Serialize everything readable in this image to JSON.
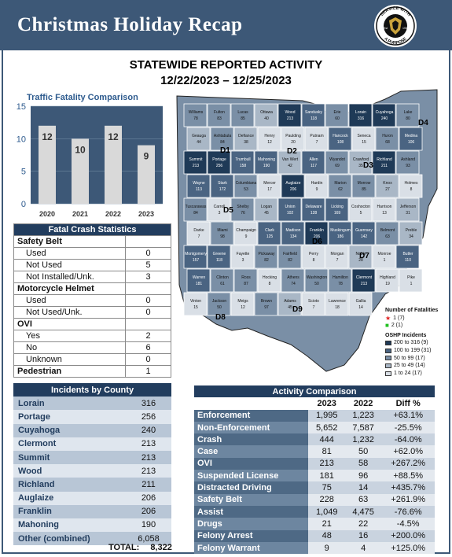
{
  "header": {
    "title": "Christmas Holiday Recap",
    "seal_text_top": "SERVICE WITH",
    "seal_text_bottom": "A PURPOSE",
    "seal_est": "Est",
    "seal_year": "1933"
  },
  "report": {
    "title": "STATEWIDE REPORTED ACTIVITY",
    "dates": "12/22/2023 – 12/25/2023"
  },
  "chart_data": {
    "type": "bar",
    "title": "Traffic Fatality Comparison",
    "categories": [
      "2020",
      "2021",
      "2022",
      "2023"
    ],
    "values": [
      12,
      10,
      12,
      9
    ],
    "ylim": [
      0,
      15
    ],
    "yticks": [
      0,
      5,
      10,
      15
    ],
    "bar_color": "#d9d9d9",
    "background_color": "#3d5877"
  },
  "fatal_crash": {
    "title": "Fatal Crash Statistics",
    "sections": [
      {
        "label": "Safety Belt",
        "rows": [
          {
            "label": "Used",
            "value": "0"
          },
          {
            "label": "Not Used",
            "value": "5"
          },
          {
            "label": "Not Installed/Unk.",
            "value": "3"
          }
        ]
      },
      {
        "label": "Motorcycle Helmet",
        "rows": [
          {
            "label": "Used",
            "value": "0"
          },
          {
            "label": "Not Used/Unk.",
            "value": "0"
          }
        ]
      },
      {
        "label": "OVI",
        "rows": [
          {
            "label": "Yes",
            "value": "2"
          },
          {
            "label": "No",
            "value": "6"
          },
          {
            "label": "Unknown",
            "value": "0"
          }
        ]
      }
    ],
    "pedestrian": {
      "label": "Pedestrian",
      "value": "1"
    }
  },
  "incidents": {
    "title": "Incidents by County",
    "rows": [
      {
        "county": "Lorain",
        "value": "316"
      },
      {
        "county": "Portage",
        "value": "256"
      },
      {
        "county": "Cuyahoga",
        "value": "240"
      },
      {
        "county": "Clermont",
        "value": "213"
      },
      {
        "county": "Summit",
        "value": "213"
      },
      {
        "county": "Wood",
        "value": "213"
      },
      {
        "county": "Richland",
        "value": "211"
      },
      {
        "county": "Auglaize",
        "value": "206"
      },
      {
        "county": "Franklin",
        "value": "206"
      },
      {
        "county": "Mahoning",
        "value": "190"
      },
      {
        "county": "Other (combined)",
        "value": "6,058"
      }
    ],
    "total_label": "TOTAL:",
    "total_value": "8,322"
  },
  "activity": {
    "title": "Activity Comparison",
    "columns": [
      "2023",
      "2022",
      "Diff %"
    ],
    "rows": [
      {
        "metric": "Enforcement",
        "y2023": "1,995",
        "y2022": "1,223",
        "diff": "+63.1%"
      },
      {
        "metric": "Non-Enforcement",
        "y2023": "5,652",
        "y2022": "7,587",
        "diff": "-25.5%"
      },
      {
        "metric": "Crash",
        "y2023": "444",
        "y2022": "1,232",
        "diff": "-64.0%"
      },
      {
        "metric": "Case",
        "y2023": "81",
        "y2022": "50",
        "diff": "+62.0%"
      },
      {
        "metric": "OVI",
        "y2023": "213",
        "y2022": "58",
        "diff": "+267.2%"
      },
      {
        "metric": "Suspended License",
        "y2023": "181",
        "y2022": "96",
        "diff": "+88.5%"
      },
      {
        "metric": "Distracted Driving",
        "y2023": "75",
        "y2022": "14",
        "diff": "+435.7%"
      },
      {
        "metric": "Safety Belt",
        "y2023": "228",
        "y2022": "63",
        "diff": "+261.9%"
      },
      {
        "metric": "Assist",
        "y2023": "1,049",
        "y2022": "4,475",
        "diff": "-76.6%"
      },
      {
        "metric": "Drugs",
        "y2023": "21",
        "y2022": "22",
        "diff": "-4.5%"
      },
      {
        "metric": "Felony Arrest",
        "y2023": "48",
        "y2022": "16",
        "diff": "+200.0%"
      },
      {
        "metric": "Felony Warrant",
        "y2023": "9",
        "y2022": "4",
        "diff": "+125.0%"
      }
    ]
  },
  "map": {
    "districts": [
      "D1",
      "D2",
      "D3",
      "D4",
      "D5",
      "D6",
      "D7",
      "D8",
      "D9"
    ],
    "legend": {
      "fatalities_title": "Number of Fatalities",
      "fatalities": [
        {
          "symbol": "★",
          "label": "1  (7)",
          "color": "#e02020"
        },
        {
          "symbol": "■",
          "label": "2  (1)",
          "color": "#22c022"
        }
      ],
      "incidents_title": "OSHP Incidents",
      "incidents": [
        {
          "label": "200 to 316  (9)",
          "color": "#1f3a57"
        },
        {
          "label": "100 to 199  (31)",
          "color": "#4a6482"
        },
        {
          "label": "50 to 99  (17)",
          "color": "#7a8fa6"
        },
        {
          "label": "25 to 49  (14)",
          "color": "#a9b7c6"
        },
        {
          "label": "1 to 24  (17)",
          "color": "#d9dfe6"
        }
      ]
    },
    "county_labels": [
      {
        "name": "Williams",
        "v": "78"
      },
      {
        "name": "Fulton",
        "v": "83"
      },
      {
        "name": "Lucas",
        "v": "85"
      },
      {
        "name": "Ottawa",
        "v": "40"
      },
      {
        "name": "Wood",
        "v": "213"
      },
      {
        "name": "Sandusky",
        "v": "118"
      },
      {
        "name": "Erie",
        "v": "60"
      },
      {
        "name": "Lorain",
        "v": "316"
      },
      {
        "name": "Cuyahoga",
        "v": "240"
      },
      {
        "name": "Lake",
        "v": "80"
      },
      {
        "name": "Geauga",
        "v": "44"
      },
      {
        "name": "Ashtabula",
        "v": "84"
      },
      {
        "name": "Defiance",
        "v": "38"
      },
      {
        "name": "Henry",
        "v": "12"
      },
      {
        "name": "Paulding",
        "v": "20"
      },
      {
        "name": "Putnam",
        "v": "7"
      },
      {
        "name": "Hancock",
        "v": "108"
      },
      {
        "name": "Seneca",
        "v": "15"
      },
      {
        "name": "Huron",
        "v": "68"
      },
      {
        "name": "Medina",
        "v": "106"
      },
      {
        "name": "Summit",
        "v": "213"
      },
      {
        "name": "Portage",
        "v": "256"
      },
      {
        "name": "Trumbull",
        "v": "158"
      },
      {
        "name": "Mahoning",
        "v": "190"
      },
      {
        "name": "Van Wert",
        "v": "42"
      },
      {
        "name": "Allen",
        "v": "117"
      },
      {
        "name": "Wyandot",
        "v": "69"
      },
      {
        "name": "Crawford",
        "v": "35"
      },
      {
        "name": "Richland",
        "v": "211"
      },
      {
        "name": "Ashland",
        "v": "93"
      },
      {
        "name": "Wayne",
        "v": "113"
      },
      {
        "name": "Stark",
        "v": "172"
      },
      {
        "name": "Columbiana",
        "v": "53"
      },
      {
        "name": "Mercer",
        "v": "17"
      },
      {
        "name": "Auglaize",
        "v": "206"
      },
      {
        "name": "Hardin",
        "v": "9"
      },
      {
        "name": "Marion",
        "v": "62"
      },
      {
        "name": "Morrow",
        "v": "85"
      },
      {
        "name": "Knox",
        "v": "27"
      },
      {
        "name": "Holmes",
        "v": "8"
      },
      {
        "name": "Tuscarawas",
        "v": "84"
      },
      {
        "name": "Carroll",
        "v": "3"
      },
      {
        "name": "Shelby",
        "v": "76"
      },
      {
        "name": "Logan",
        "v": "45"
      },
      {
        "name": "Union",
        "v": "102"
      },
      {
        "name": "Delaware",
        "v": "128"
      },
      {
        "name": "Licking",
        "v": "169"
      },
      {
        "name": "Coshocton",
        "v": "5"
      },
      {
        "name": "Harrison",
        "v": "13"
      },
      {
        "name": "Jefferson",
        "v": "31"
      },
      {
        "name": "Darke",
        "v": "7"
      },
      {
        "name": "Miami",
        "v": "98"
      },
      {
        "name": "Champaign",
        "v": "9"
      },
      {
        "name": "Clark",
        "v": "125"
      },
      {
        "name": "Madison",
        "v": "134"
      },
      {
        "name": "Franklin",
        "v": "206"
      },
      {
        "name": "Muskingum",
        "v": "186"
      },
      {
        "name": "Guernsey",
        "v": "142"
      },
      {
        "name": "Belmont",
        "v": "63"
      },
      {
        "name": "Preble",
        "v": "34"
      },
      {
        "name": "Montgomery",
        "v": "157"
      },
      {
        "name": "Greene",
        "v": "118"
      },
      {
        "name": "Fayette",
        "v": "3"
      },
      {
        "name": "Pickaway",
        "v": "82"
      },
      {
        "name": "Fairfield",
        "v": "82"
      },
      {
        "name": "Perry",
        "v": "8"
      },
      {
        "name": "Morgan",
        "v": "7"
      },
      {
        "name": "Noble",
        "v": "28"
      },
      {
        "name": "Monroe",
        "v": "1"
      },
      {
        "name": "Butler",
        "v": "110"
      },
      {
        "name": "Warren",
        "v": "181"
      },
      {
        "name": "Clinton",
        "v": "61"
      },
      {
        "name": "Ross",
        "v": "87"
      },
      {
        "name": "Hocking",
        "v": "8"
      },
      {
        "name": "Athens",
        "v": "74"
      },
      {
        "name": "Washington",
        "v": "50"
      },
      {
        "name": "Hamilton",
        "v": "78"
      },
      {
        "name": "Clermont",
        "v": "213"
      },
      {
        "name": "Highland",
        "v": "19"
      },
      {
        "name": "Pike",
        "v": "1"
      },
      {
        "name": "Vinton",
        "v": "15"
      },
      {
        "name": "Jackson",
        "v": "50"
      },
      {
        "name": "Meigs",
        "v": "12"
      },
      {
        "name": "Brown",
        "v": "97"
      },
      {
        "name": "Adams",
        "v": "45"
      },
      {
        "name": "Scioto",
        "v": "7"
      },
      {
        "name": "Lawrence",
        "v": "18"
      },
      {
        "name": "Gallia",
        "v": "14"
      }
    ]
  }
}
